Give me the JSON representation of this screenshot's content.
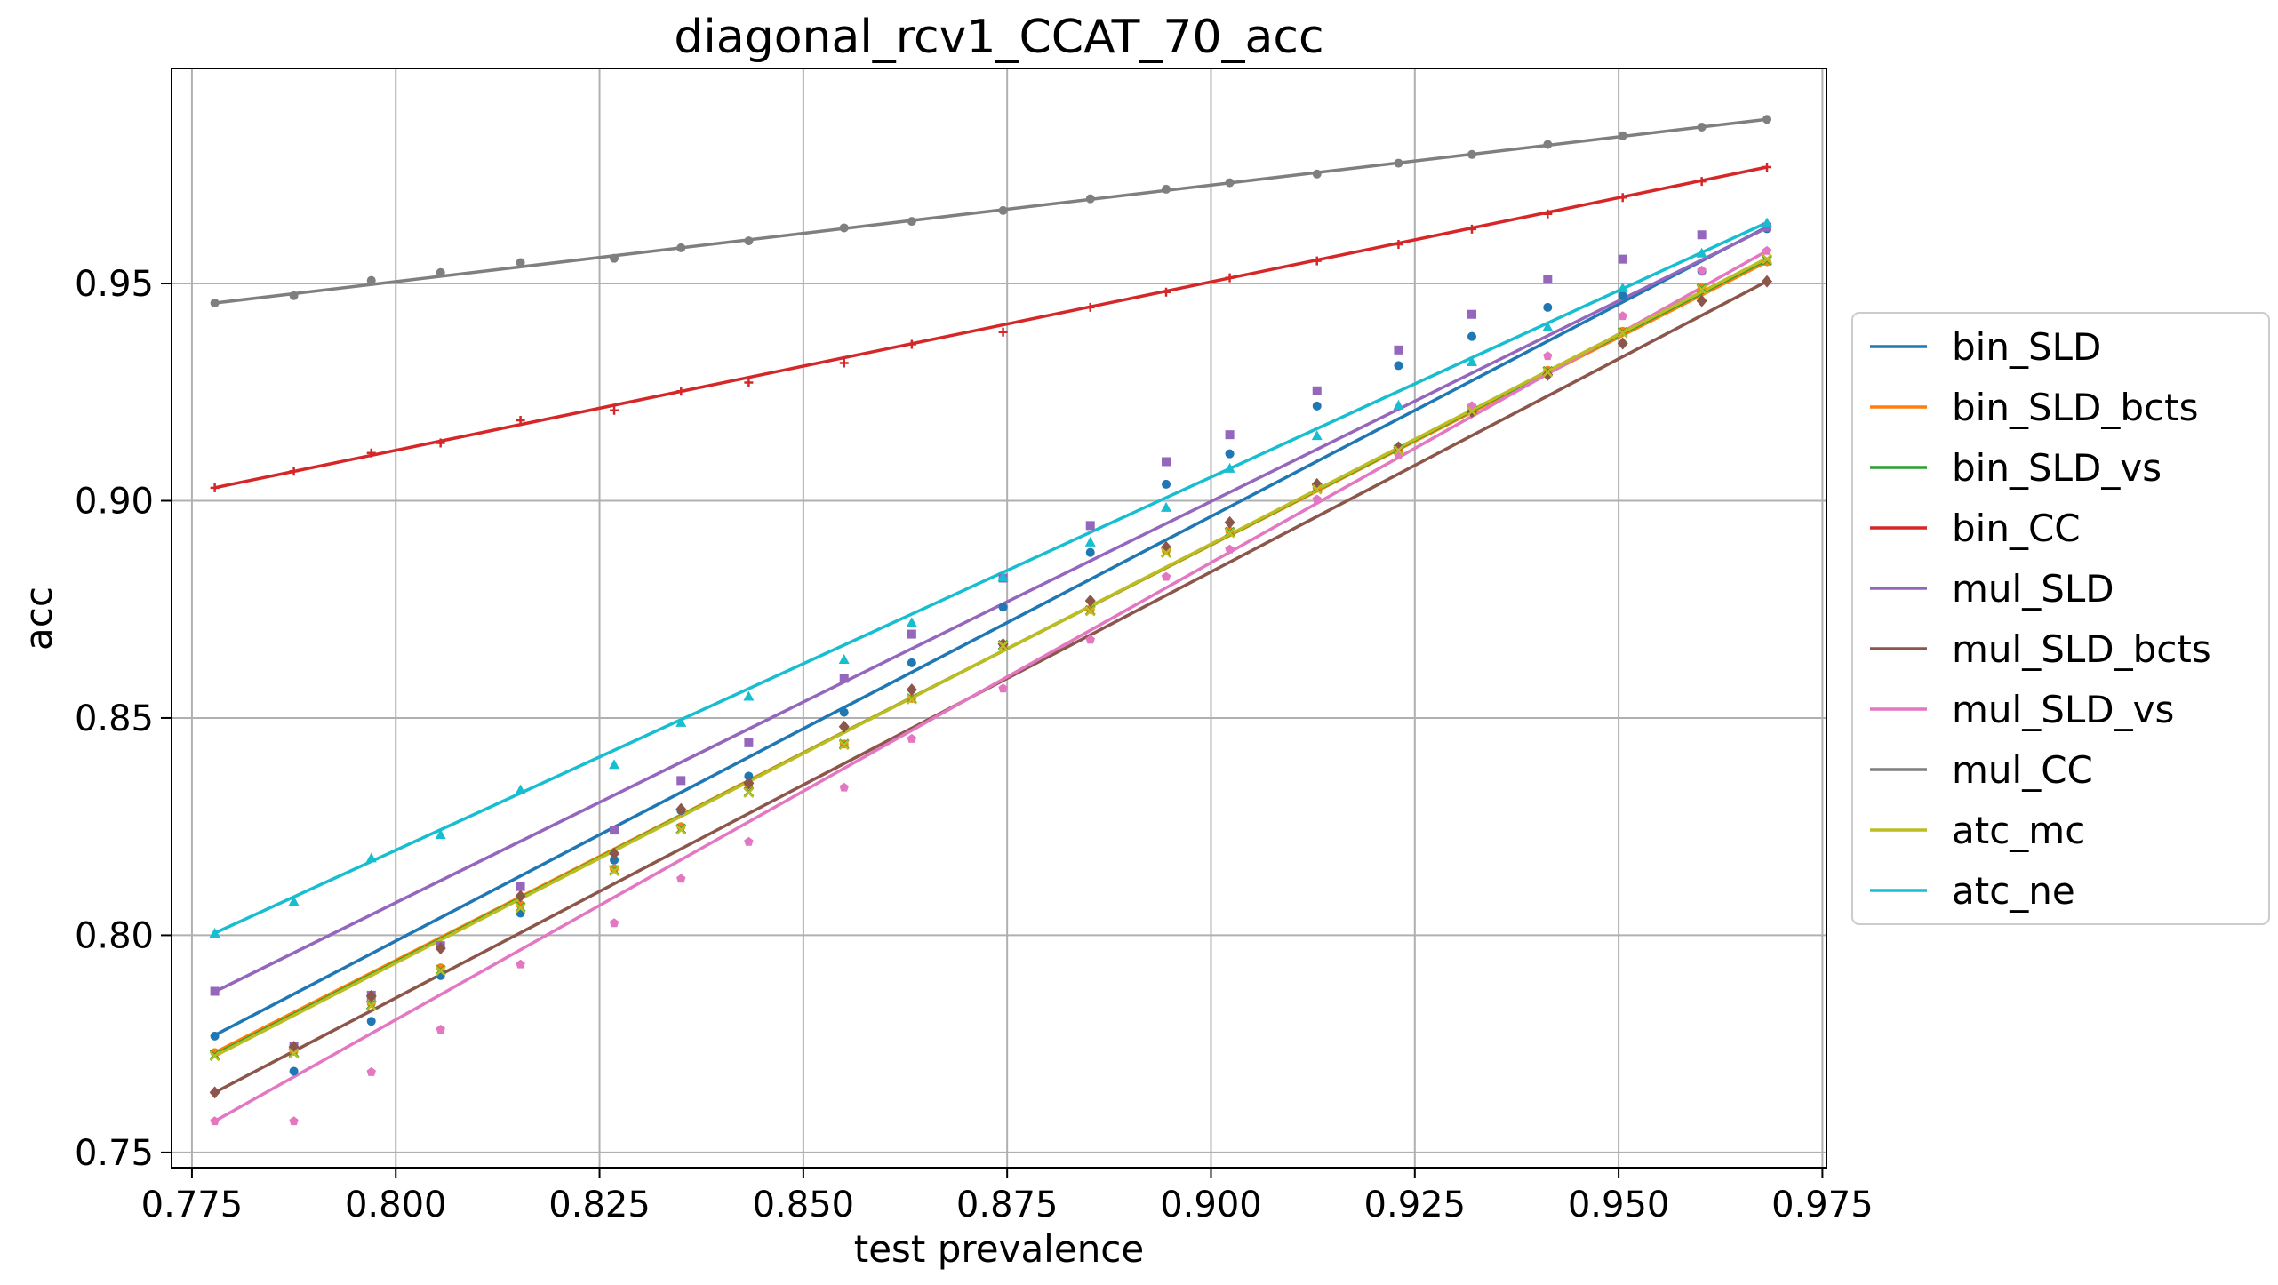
{
  "chart_data": {
    "type": "scatter",
    "title": "diagonal_rcv1_CCAT_70_acc",
    "xlabel": "test prevalence",
    "ylabel": "acc",
    "xlim": [
      0.7725,
      0.9755
    ],
    "ylim": [
      0.7465,
      0.9995
    ],
    "xticks": [
      "0.775",
      "0.800",
      "0.825",
      "0.850",
      "0.875",
      "0.900",
      "0.925",
      "0.950",
      "0.975"
    ],
    "yticks": [
      "0.75",
      "0.80",
      "0.85",
      "0.90",
      "0.95"
    ],
    "grid": true,
    "legend_position": "right",
    "x": [
      0.7778,
      0.7875,
      0.797,
      0.8055,
      0.8153,
      0.8268,
      0.835,
      0.8433,
      0.855,
      0.8633,
      0.8745,
      0.8852,
      0.8945,
      0.9023,
      0.913,
      0.923,
      0.932,
      0.9413,
      0.9505,
      0.9602,
      0.9682
    ],
    "series": [
      {
        "name": "bin_SLD",
        "color": "#1f77b4",
        "marker": "circle",
        "fit": [
          0.777,
          0.963
        ],
        "values": [
          0.7768,
          0.7687,
          0.7802,
          0.7907,
          0.8051,
          0.8173,
          0.8287,
          0.8366,
          0.8513,
          0.8627,
          0.8755,
          0.8881,
          0.9038,
          0.9108,
          0.9218,
          0.9311,
          0.9378,
          0.9445,
          0.9472,
          0.9528,
          0.9626
        ]
      },
      {
        "name": "bin_SLD_bcts",
        "color": "#ff7f0e",
        "marker": "circle",
        "fit": [
          0.773,
          0.955
        ],
        "values": [
          0.773,
          0.7733,
          0.7843,
          0.7925,
          0.807,
          0.8153,
          0.825,
          0.8345,
          0.844,
          0.8545,
          0.867,
          0.875,
          0.8885,
          0.893,
          0.903,
          0.912,
          0.921,
          0.93,
          0.939,
          0.949,
          0.955
        ]
      },
      {
        "name": "bin_SLD_vs",
        "color": "#2ca02c",
        "marker": "x",
        "fit": [
          0.7725,
          0.9555
        ],
        "values": [
          0.7725,
          0.773,
          0.784,
          0.792,
          0.8065,
          0.815,
          0.8245,
          0.833,
          0.844,
          0.8545,
          0.8668,
          0.8748,
          0.8882,
          0.8928,
          0.9028,
          0.9118,
          0.9208,
          0.9298,
          0.9388,
          0.9488,
          0.9553
        ]
      },
      {
        "name": "bin_CC",
        "color": "#d62728",
        "marker": "plus",
        "fit": [
          0.903,
          0.9768
        ],
        "values": [
          0.903,
          0.9068,
          0.911,
          0.9133,
          0.9185,
          0.9208,
          0.9252,
          0.9272,
          0.9317,
          0.936,
          0.9388,
          0.9445,
          0.948,
          0.9513,
          0.9552,
          0.959,
          0.9625,
          0.966,
          0.9698,
          0.9735,
          0.9768
        ]
      },
      {
        "name": "mul_SLD",
        "color": "#9467bd",
        "marker": "square",
        "fit": [
          0.787,
          0.9628
        ],
        "values": [
          0.7871,
          0.7745,
          0.7862,
          0.7976,
          0.8112,
          0.8242,
          0.8356,
          0.8443,
          0.8591,
          0.8693,
          0.8822,
          0.8943,
          0.909,
          0.9152,
          0.9253,
          0.9347,
          0.9429,
          0.951,
          0.9556,
          0.9612,
          0.963
        ]
      },
      {
        "name": "mul_SLD_bcts",
        "color": "#8c564b",
        "marker": "diamond",
        "fit": [
          0.7638,
          0.9505
        ],
        "values": [
          0.7638,
          0.7743,
          0.786,
          0.797,
          0.809,
          0.8188,
          0.829,
          0.835,
          0.848,
          0.8565,
          0.867,
          0.877,
          0.8893,
          0.895,
          0.9038,
          0.9123,
          0.9205,
          0.929,
          0.9362,
          0.946,
          0.9505
        ]
      },
      {
        "name": "mul_SLD_vs",
        "color": "#e377c2",
        "marker": "pentagon",
        "fit": [
          0.7572,
          0.9575
        ],
        "values": [
          0.7572,
          0.7572,
          0.7685,
          0.7783,
          0.7933,
          0.8028,
          0.813,
          0.8215,
          0.834,
          0.8452,
          0.8568,
          0.868,
          0.8825,
          0.8888,
          0.9003,
          0.9105,
          0.9218,
          0.9333,
          0.9425,
          0.953,
          0.9575
        ]
      },
      {
        "name": "mul_CC",
        "color": "#7f7f7f",
        "marker": "circle",
        "fit": [
          0.9455,
          0.9878
        ],
        "values": [
          0.9455,
          0.9472,
          0.9507,
          0.9525,
          0.9548,
          0.9558,
          0.9582,
          0.9598,
          0.9628,
          0.9643,
          0.9668,
          0.9695,
          0.9717,
          0.9732,
          0.9752,
          0.9777,
          0.9797,
          0.982,
          0.984,
          0.986,
          0.9878
        ]
      },
      {
        "name": "atc_mc",
        "color": "#bcbd22",
        "marker": "x",
        "fit": [
          0.7722,
          0.9558
        ],
        "values": [
          0.7722,
          0.7728,
          0.7838,
          0.7918,
          0.8063,
          0.8148,
          0.8243,
          0.8328,
          0.8438,
          0.8543,
          0.8666,
          0.8746,
          0.888,
          0.8926,
          0.9026,
          0.9116,
          0.9206,
          0.9296,
          0.9386,
          0.9486,
          0.9556
        ]
      },
      {
        "name": "atc_ne",
        "color": "#17becf",
        "marker": "triangle",
        "fit": [
          0.8005,
          0.964
        ],
        "values": [
          0.8005,
          0.8078,
          0.8178,
          0.8232,
          0.8335,
          0.8393,
          0.849,
          0.855,
          0.8635,
          0.872,
          0.8825,
          0.8905,
          0.8985,
          0.9075,
          0.915,
          0.922,
          0.932,
          0.94,
          0.949,
          0.957,
          0.964
        ]
      }
    ]
  }
}
